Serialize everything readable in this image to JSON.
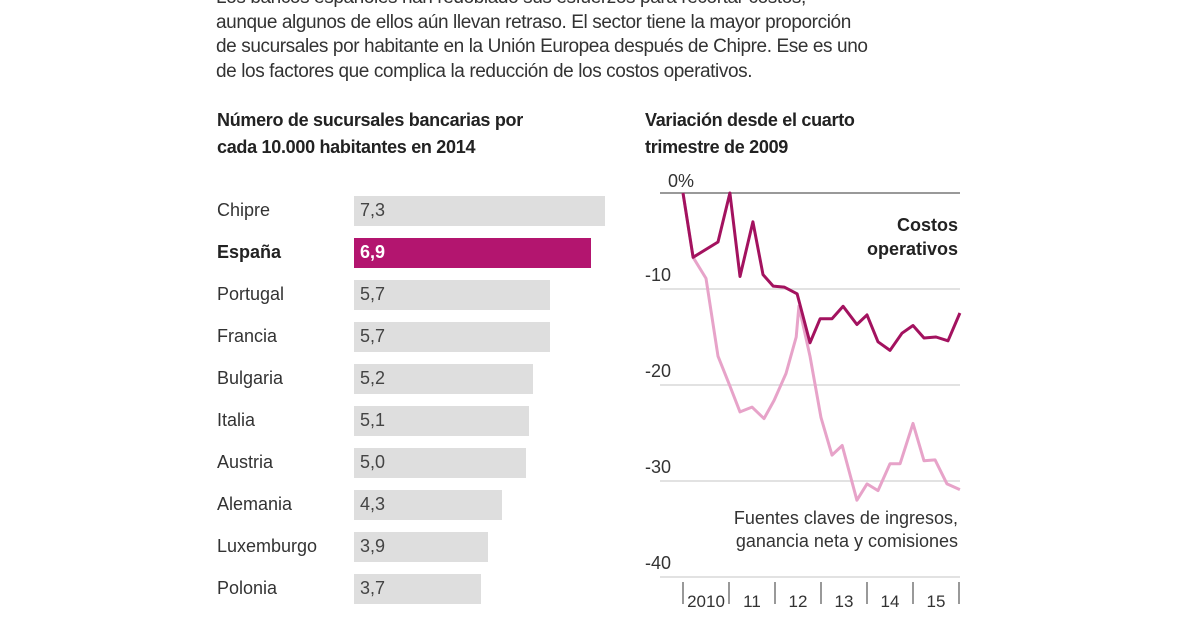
{
  "intro": [
    "Los bancos españoles han redoblado sus esfuerzos para recortar costos,",
    "aunque algunos de ellos aún llevan retraso. El sector tiene la mayor proporción",
    "de sucursales por habitante en la Unión Europea después de Chipre. Ese es uno",
    "de los factores que complica la reducción de los costos operativos."
  ],
  "colors": {
    "highlight": "#b3156f",
    "bar": "#dedede",
    "dark_line": "#a3125f",
    "light_line": "#e7a3c9",
    "grid": "#d8d8d8",
    "zero_line": "#999999"
  },
  "chart_data": [
    {
      "type": "bar",
      "orientation": "horizontal",
      "title": "Número de sucursales bancarias por cada 10.000 habitantes en 2014",
      "title_lines": [
        "Número de sucursales bancarias por",
        "cada 10.000 habitantes en 2014"
      ],
      "categories": [
        "Chipre",
        "España",
        "Portugal",
        "Francia",
        "Bulgaria",
        "Italia",
        "Austria",
        "Alemania",
        "Luxemburgo",
        "Polonia"
      ],
      "values": [
        7.3,
        6.9,
        5.7,
        5.7,
        5.2,
        5.1,
        5.0,
        4.3,
        3.9,
        3.7
      ],
      "labels": [
        "7,3",
        "6,9",
        "5,7",
        "5,7",
        "5,2",
        "5,1",
        "5,0",
        "4,3",
        "3,9",
        "3,7"
      ],
      "highlight": "España"
    },
    {
      "type": "line",
      "title": "Variación desde el cuarto trimestre de 2009",
      "title_lines": [
        "Variación desde el cuarto",
        "trimestre de 2009"
      ],
      "ylim": [
        -40,
        0
      ],
      "yticks": [
        0,
        -10,
        -20,
        -30,
        -40
      ],
      "ytick_labels": [
        "0%",
        "-10",
        "-20",
        "-30",
        "-40"
      ],
      "xlim": [
        2010,
        2016
      ],
      "xtick_labels": [
        "2010",
        "11",
        "12",
        "13",
        "14",
        "15"
      ],
      "grid": true,
      "series": [
        {
          "name": "Costos operativos",
          "label_lines": [
            "Costos",
            "operativos"
          ],
          "x": [
            2010.0,
            2010.22,
            2010.76,
            2011.02,
            2011.24,
            2011.52,
            2011.74,
            2011.96,
            2012.2,
            2012.48,
            2012.76,
            2012.98,
            2013.24,
            2013.48,
            2013.78,
            2014.0,
            2014.24,
            2014.5,
            2014.76,
            2015.0,
            2015.24,
            2015.5,
            2015.76,
            2016.02
          ],
          "y": [
            0,
            -6.7,
            -5.1,
            0,
            -8.7,
            -3,
            -8.5,
            -9.7,
            -9.8,
            -10.5,
            -15.6,
            -13.1,
            -13.1,
            -11.8,
            -13.7,
            -12.7,
            -15.5,
            -16.4,
            -14.6,
            -13.8,
            -15.1,
            -15,
            -15.4,
            -12.5
          ]
        },
        {
          "name": "Fuentes claves de ingresos, ganancia neta y comisiones",
          "label_lines": [
            "Fuentes claves de ingresos,",
            "ganancia neta y comisiones"
          ],
          "x": [
            2010.0,
            2010.22,
            2010.5,
            2010.76,
            2011.02,
            2011.24,
            2011.5,
            2011.76,
            2011.98,
            2012.24,
            2012.46,
            2012.52,
            2012.76,
            2013.0,
            2013.24,
            2013.46,
            2013.78,
            2014.0,
            2014.24,
            2014.5,
            2014.72,
            2015.0,
            2015.24,
            2015.48,
            2015.74,
            2016.02
          ],
          "y": [
            0,
            -6.7,
            -8.9,
            -17,
            -20.1,
            -22.8,
            -22.3,
            -23.5,
            -21.6,
            -18.8,
            -15,
            -11.8,
            -17,
            -23.4,
            -27.3,
            -26.3,
            -32,
            -30.3,
            -31,
            -28.2,
            -28.2,
            -24,
            -27.9,
            -27.8,
            -30.3,
            -30.9
          ]
        }
      ]
    }
  ]
}
